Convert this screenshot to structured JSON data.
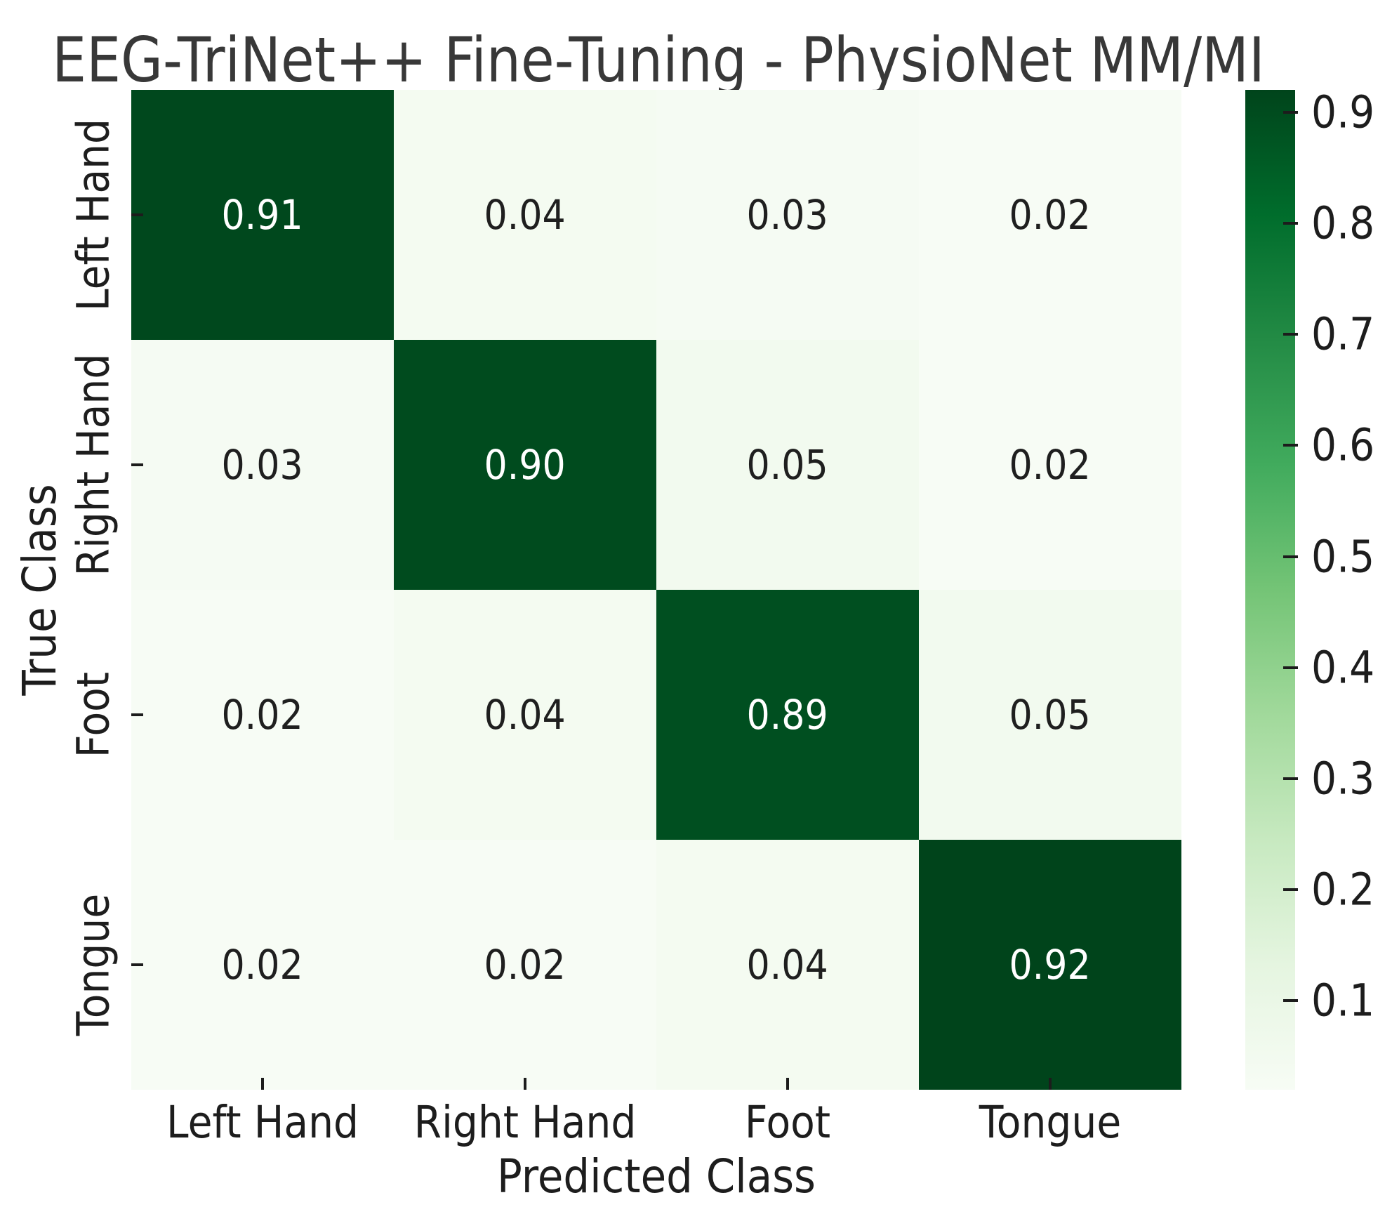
{
  "chart_data": {
    "type": "heatmap",
    "title": "EEG-TriNet++ Fine-Tuning - PhysioNet MM/MI",
    "xlabel": "Predicted Class",
    "ylabel": "True Class",
    "x_categories": [
      "Left Hand",
      "Right Hand",
      "Foot",
      "Tongue"
    ],
    "y_categories": [
      "Left Hand",
      "Right Hand",
      "Foot",
      "Tongue"
    ],
    "matrix": [
      [
        0.91,
        0.04,
        0.03,
        0.02
      ],
      [
        0.03,
        0.9,
        0.05,
        0.02
      ],
      [
        0.02,
        0.04,
        0.89,
        0.05
      ],
      [
        0.02,
        0.02,
        0.04,
        0.92
      ]
    ],
    "value_decimals": 2,
    "colormap": "Greens",
    "vmin": 0.02,
    "vmax": 0.92,
    "colorbar_tick_labels": [
      "0.9",
      "0.8",
      "0.7",
      "0.6",
      "0.5",
      "0.4",
      "0.3",
      "0.2",
      "0.1"
    ],
    "colorbar_tick_values": [
      0.9,
      0.8,
      0.7,
      0.6,
      0.5,
      0.4,
      0.3,
      0.2,
      0.1
    ],
    "colormap_stops": [
      "#f7fcf5",
      "#e5f5e0",
      "#c7e9c0",
      "#a1d99b",
      "#74c476",
      "#41ab5d",
      "#238b45",
      "#006d2c",
      "#00441b"
    ],
    "annotation_color_on_dark": "#ffffff",
    "annotation_color_on_light": "#1f1f1f",
    "legend_position": "right-colorbar",
    "grid": false
  }
}
